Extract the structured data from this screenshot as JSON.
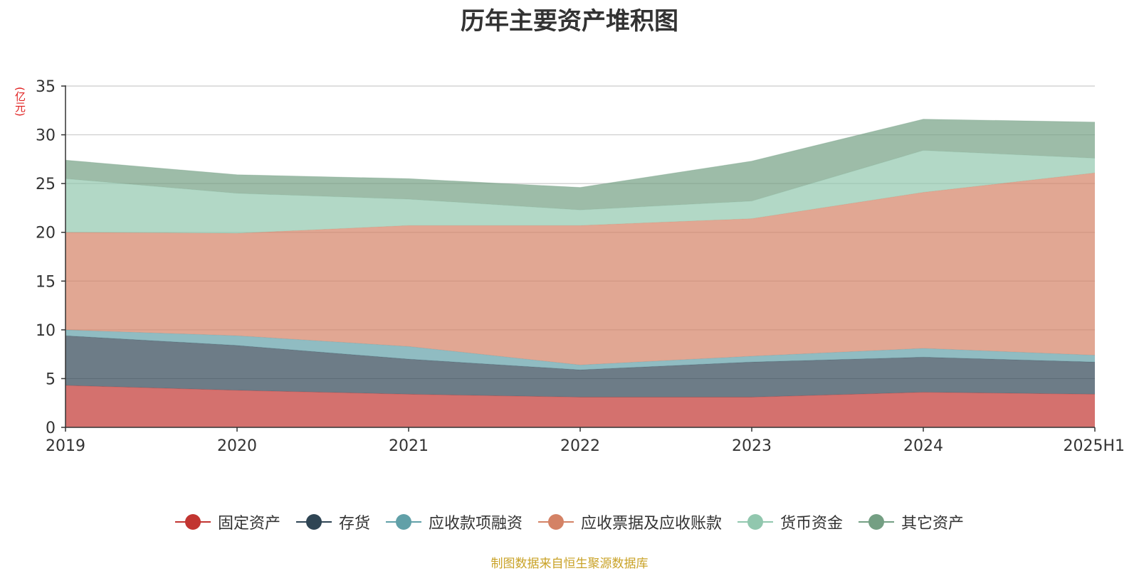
{
  "chart_data": {
    "type": "area",
    "stacked": true,
    "title": "历年主要资产堆积图",
    "y_unit": "(亿元)",
    "categories": [
      "2019",
      "2020",
      "2021",
      "2022",
      "2023",
      "2024",
      "2025H1"
    ],
    "ylim": [
      0,
      35
    ],
    "yticks": [
      0,
      5,
      10,
      15,
      20,
      25,
      30,
      35
    ],
    "grid": true,
    "legend_position": "bottom",
    "series": [
      {
        "name": "固定资产",
        "color": "#c23531",
        "values": [
          4.3,
          3.8,
          3.4,
          3.1,
          3.1,
          3.6,
          3.4
        ]
      },
      {
        "name": "存货",
        "color": "#2f4554",
        "values": [
          5.1,
          4.6,
          3.6,
          2.8,
          3.6,
          3.6,
          3.3
        ]
      },
      {
        "name": "应收款项融资",
        "color": "#61a0a8",
        "values": [
          0.6,
          1.0,
          1.3,
          0.5,
          0.6,
          0.9,
          0.7
        ]
      },
      {
        "name": "应收票据及应收账款",
        "color": "#d48265",
        "values": [
          10.0,
          10.5,
          12.4,
          14.3,
          14.1,
          16.0,
          18.7
        ]
      },
      {
        "name": "货币资金",
        "color": "#91c7ae",
        "values": [
          5.5,
          4.1,
          2.7,
          1.6,
          1.8,
          4.3,
          1.5
        ]
      },
      {
        "name": "其它资产",
        "color": "#749f83",
        "values": [
          1.9,
          1.9,
          2.1,
          2.3,
          4.1,
          3.2,
          3.7
        ]
      }
    ]
  },
  "footer": {
    "source": "制图数据来自恒生聚源数据库"
  }
}
